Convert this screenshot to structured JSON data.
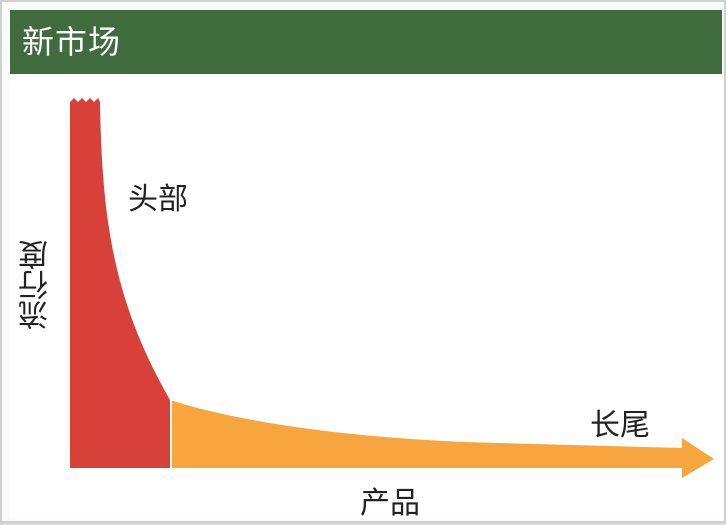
{
  "header": {
    "title": "新市场"
  },
  "diagram": {
    "y_axis_label": "流行度",
    "x_axis_label": "产品",
    "head_label": "头部",
    "tail_label": "长尾",
    "colors": {
      "head": "#d7413a",
      "tail": "#f6a53f",
      "header_bg": "#3f6b3d"
    }
  }
}
